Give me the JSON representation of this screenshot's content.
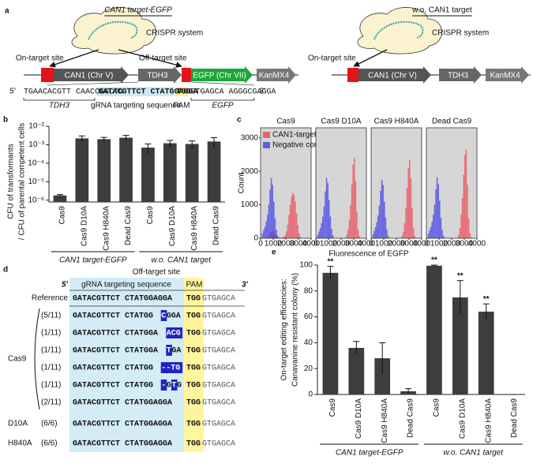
{
  "panel_labels": [
    "a",
    "b",
    "c",
    "d",
    "e"
  ],
  "panel_a": {
    "left": {
      "title": "CAN1 target-EGFP",
      "system": "CRISPR system",
      "on_target": "On-target site",
      "off_target": "Off-target site",
      "genes": [
        "CAN1 (Chr V)",
        "TDH3",
        "EGFP (Chr VII)",
        "KanMX4"
      ]
    },
    "sequence": {
      "five": "5'",
      "upstream": "TGAACACGTT CAACCGGCTG",
      "grna": "GATACGTTCT CTATGGAGGA",
      "pam": "TGG",
      "downstream": "GTGAGCA AGGGCGAGGA",
      "three": "3'"
    },
    "sequence_labels": [
      "TDH3",
      "gRNA targeting sequence",
      "PAM",
      "EGFP"
    ],
    "right": {
      "title": "w.o. CAN1 target",
      "system": "CRISPR system",
      "on_target": "On-target site",
      "genes": [
        "CAN1 (Chr V)",
        "TDH3",
        "KanMX4"
      ]
    }
  },
  "chart_data": [
    {
      "type": "bar",
      "log": true,
      "color": "#3d3d3d",
      "ylabel": [
        "CFU of transformants",
        "/ CFU of parental competent cells"
      ],
      "categories": [
        "Cas9",
        "Cas9 D10A",
        "Cas9 H840A",
        "Dead Cas9",
        "Cas9",
        "Cas9 D10A",
        "Cas9 H840A",
        "Dead Cas9"
      ],
      "values": [
        1.8e-06,
        0.0022,
        0.002,
        0.0024,
        0.0007,
        0.0012,
        0.0011,
        0.0015
      ],
      "errors": [
        2e-07,
        0.0008,
        0.0005,
        0.0008,
        0.0004,
        0.0005,
        0.0005,
        0.0009
      ],
      "ylim": [
        8e-07,
        0.01
      ],
      "yticks": [
        {
          "value": 1e-06,
          "label": "10⁻⁶"
        },
        {
          "value": 1e-05,
          "label": "10⁻⁵"
        },
        {
          "value": 0.0001,
          "label": "10⁻⁴"
        },
        {
          "value": 0.001,
          "label": "10⁻³"
        },
        {
          "value": 0.01,
          "label": "10⁻²"
        }
      ],
      "groups": [
        {
          "label": "CAN1 target-EGFP",
          "span": [
            0,
            3
          ]
        },
        {
          "label": "w.o. CAN1 target",
          "span": [
            4,
            7
          ]
        }
      ]
    },
    {
      "type": "histogram",
      "title": "Cas9",
      "ylabel": "Count",
      "xlabel": "Fluorescence of EGFP",
      "legend": "upper left",
      "background": "#d6d6d6",
      "bins": [
        0,
        100,
        200,
        300,
        400,
        500,
        600,
        700,
        800,
        900,
        1000,
        1100,
        1200,
        1300,
        1400,
        1500,
        1600,
        1700,
        1800,
        1900,
        2000,
        2100,
        2200,
        2300,
        2400,
        2500,
        2600,
        2700,
        2800,
        2900,
        3000,
        3100,
        3200,
        3300,
        3400,
        3500,
        3600,
        3700,
        3800,
        3900,
        4000
      ],
      "xlim": [
        0,
        4000
      ],
      "xticks": [
        0,
        1000,
        2000,
        3000,
        4000
      ],
      "ylim": [
        0,
        3300
      ],
      "yticks": [
        0,
        1000,
        2000,
        3000
      ],
      "series": [
        {
          "name": "CAN1-target EGFP",
          "color": "#e9505c",
          "values": [
            0,
            0,
            0,
            0,
            0,
            0,
            80,
            150,
            200,
            200,
            180,
            130,
            80,
            50,
            30,
            20,
            20,
            30,
            50,
            100,
            200,
            400,
            700,
            1000,
            1250,
            1350,
            1300,
            1100,
            750,
            400,
            150,
            50,
            0,
            0,
            0,
            0,
            0,
            0,
            0,
            0
          ]
        },
        {
          "name": "Negative control",
          "color": "#4646e6",
          "values": [
            0,
            150,
            250,
            350,
            500,
            700,
            1000,
            1450,
            1800,
            1600,
            1100,
            600,
            250,
            80,
            0,
            0,
            0,
            0,
            0,
            0,
            0,
            0,
            0,
            0,
            0,
            0,
            0,
            0,
            0,
            0,
            0,
            0,
            0,
            0,
            0,
            0,
            0,
            0,
            0,
            0
          ]
        }
      ]
    },
    {
      "type": "histogram",
      "title": "Cas9 D10A",
      "background": "#d6d6d6",
      "bins": [
        0,
        100,
        200,
        300,
        400,
        500,
        600,
        700,
        800,
        900,
        1000,
        1100,
        1200,
        1300,
        1400,
        1500,
        1600,
        1700,
        1800,
        1900,
        2000,
        2100,
        2200,
        2300,
        2400,
        2500,
        2600,
        2700,
        2800,
        2900,
        3000,
        3100,
        3200,
        3300,
        3400,
        3500,
        3600,
        3700,
        3800,
        3900,
        4000
      ],
      "xlim": [
        0,
        4000
      ],
      "xticks": [
        0,
        1000,
        2000,
        3000,
        4000
      ],
      "ylim": [
        0,
        3300
      ],
      "series": [
        {
          "color": "#e9505c",
          "values": [
            0,
            0,
            0,
            0,
            0,
            0,
            0,
            0,
            0,
            0,
            0,
            0,
            0,
            0,
            0,
            0,
            0,
            0,
            0,
            0,
            0,
            0,
            0,
            0,
            100,
            250,
            550,
            1000,
            1600,
            2200,
            2400,
            1700,
            800,
            250,
            60,
            0,
            0,
            0,
            0,
            0
          ]
        },
        {
          "color": "#4646e6",
          "values": [
            0,
            100,
            200,
            300,
            450,
            650,
            950,
            1400,
            1800,
            1650,
            1150,
            650,
            280,
            90,
            0,
            0,
            0,
            0,
            0,
            0,
            0,
            0,
            0,
            0,
            0,
            0,
            0,
            0,
            0,
            0,
            0,
            0,
            0,
            0,
            0,
            0,
            0,
            0,
            0,
            0
          ]
        }
      ]
    },
    {
      "type": "histogram",
      "title": "Cas9 H840A",
      "background": "#d6d6d6",
      "bins": [
        0,
        100,
        200,
        300,
        400,
        500,
        600,
        700,
        800,
        900,
        1000,
        1100,
        1200,
        1300,
        1400,
        1500,
        1600,
        1700,
        1800,
        1900,
        2000,
        2100,
        2200,
        2300,
        2400,
        2500,
        2600,
        2700,
        2800,
        2900,
        3000,
        3100,
        3200,
        3300,
        3400,
        3500,
        3600,
        3700,
        3800,
        3900,
        4000
      ],
      "xlim": [
        0,
        4000
      ],
      "xticks": [
        0,
        1000,
        2000,
        3000,
        4000
      ],
      "ylim": [
        0,
        3300
      ],
      "series": [
        {
          "color": "#e9505c",
          "values": [
            0,
            0,
            0,
            0,
            0,
            0,
            0,
            0,
            0,
            0,
            0,
            0,
            0,
            0,
            0,
            0,
            0,
            0,
            0,
            0,
            0,
            0,
            0,
            0,
            80,
            200,
            450,
            900,
            1500,
            2100,
            2350,
            1800,
            900,
            300,
            80,
            0,
            0,
            0,
            0,
            0
          ]
        },
        {
          "color": "#4646e6",
          "values": [
            0,
            120,
            220,
            330,
            480,
            680,
            980,
            1420,
            1750,
            1600,
            1100,
            620,
            260,
            80,
            0,
            0,
            0,
            0,
            0,
            0,
            0,
            0,
            0,
            0,
            0,
            0,
            0,
            0,
            0,
            0,
            0,
            0,
            0,
            0,
            0,
            0,
            0,
            0,
            0,
            0
          ]
        }
      ]
    },
    {
      "type": "histogram",
      "title": "Dead Cas9",
      "background": "#d6d6d6",
      "bins": [
        0,
        100,
        200,
        300,
        400,
        500,
        600,
        700,
        800,
        900,
        1000,
        1100,
        1200,
        1300,
        1400,
        1500,
        1600,
        1700,
        1800,
        1900,
        2000,
        2100,
        2200,
        2300,
        2400,
        2500,
        2600,
        2700,
        2800,
        2900,
        3000,
        3100,
        3200,
        3300,
        3400,
        3500,
        3600,
        3700,
        3800,
        3900,
        4000
      ],
      "xlim": [
        0,
        4000
      ],
      "xticks": [
        0,
        1000,
        2000,
        3000,
        4000
      ],
      "ylim": [
        0,
        3300
      ],
      "series": [
        {
          "color": "#e9505c",
          "values": [
            0,
            0,
            0,
            0,
            0,
            0,
            0,
            0,
            0,
            0,
            0,
            0,
            0,
            0,
            0,
            0,
            0,
            0,
            0,
            0,
            0,
            0,
            0,
            0,
            0,
            100,
            300,
            700,
            1200,
            1900,
            2500,
            2650,
            1600,
            600,
            150,
            30,
            0,
            0,
            0,
            0
          ]
        },
        {
          "color": "#4646e6",
          "values": [
            0,
            130,
            240,
            340,
            490,
            700,
            1000,
            1460,
            1820,
            1620,
            1120,
            610,
            250,
            80,
            0,
            0,
            0,
            0,
            0,
            0,
            0,
            0,
            0,
            0,
            0,
            0,
            0,
            0,
            0,
            0,
            0,
            0,
            0,
            0,
            0,
            0,
            0,
            0,
            0,
            0
          ]
        }
      ]
    },
    {
      "type": "bar",
      "color": "#3d3d3d",
      "ylabel": [
        "On-target editing efficiencies:",
        "Canavanine resistant colony (%)"
      ],
      "categories": [
        "Cas9",
        "Cas9 D10A",
        "Cas9 H840A",
        "Dead Cas9",
        "Cas9",
        "Cas9 D10A",
        "Cas9 H840A",
        "Dead Cas9"
      ],
      "values": [
        94,
        36,
        28,
        2.5,
        99.5,
        75,
        64,
        0
      ],
      "errors": [
        5,
        5,
        12,
        2,
        0.5,
        13,
        6,
        0
      ],
      "ylim": [
        0,
        100
      ],
      "yticks": [
        0,
        20,
        40,
        60,
        80,
        100
      ],
      "annotations": [
        {
          "text": "**",
          "at": 0
        },
        {
          "text": "**",
          "at": 4
        },
        {
          "text": "**",
          "at": 5
        },
        {
          "text": "**",
          "at": 6
        }
      ],
      "groups": [
        {
          "label": "CAN1 target-EGFP",
          "span": [
            0,
            3
          ]
        },
        {
          "label": "w.o. CAN1 target",
          "span": [
            4,
            7
          ]
        }
      ]
    }
  ],
  "panel_d": {
    "title": "Off-target site",
    "header": {
      "five": "5'",
      "grna": "gRNA targeting sequence",
      "pam": "PAM",
      "three": "3'"
    },
    "group_label": "Cas9",
    "rows": [
      {
        "label": "Reference",
        "segments": [
          {
            "text": "GATACGTTCT CTATGGAGGA"
          }
        ],
        "pam": "TGG",
        "tail": "GTGAGCA"
      },
      {
        "count": "(5/11)",
        "segments": [
          {
            "text": "GATACGTTCT CTATGG"
          },
          {
            "text": "C",
            "mismatch": true
          },
          {
            "text": "GGA"
          }
        ],
        "pam": "TGG",
        "tail": "GTGAGCA"
      },
      {
        "count": "(1/11)",
        "segments": [
          {
            "text": "GATACGTTCT CTATGGA"
          },
          {
            "text": "ACG",
            "mismatch": true
          }
        ],
        "pam": "TGG",
        "tail": "GTGAGCA"
      },
      {
        "count": "(1/11)",
        "segments": [
          {
            "text": "GATACGTTCT CTATGGA"
          },
          {
            "text": "T",
            "mismatch": true
          },
          {
            "text": "GA"
          }
        ],
        "pam": "TGG",
        "tail": "GTGAGCA"
      },
      {
        "count": "(1/11)",
        "segments": [
          {
            "text": "GATACGTTCT CTATGG"
          },
          {
            "text": "--TG",
            "mismatch": true
          }
        ],
        "pam": "TGG",
        "tail": "GTGAGCA"
      },
      {
        "count": "(1/11)",
        "segments": [
          {
            "text": "GATACGTTCT CTATGG"
          },
          {
            "text": "-",
            "mismatch": true
          },
          {
            "text": "G"
          },
          {
            "text": "T",
            "mismatch": true
          },
          {
            "text": "G"
          }
        ],
        "pam": "TGG",
        "tail": "GTGAGCA"
      },
      {
        "count": "(2/11)",
        "segments": [
          {
            "text": "GATACGTTCT CTATGGAGGA"
          }
        ],
        "pam": "TGG",
        "tail": "GTGAGCA"
      },
      {
        "label": "D10A",
        "count": "(6/6)",
        "segments": [
          {
            "text": "GATACGTTCT CTATGGAGGA"
          }
        ],
        "pam": "TGG",
        "tail": "GTGAGCA"
      },
      {
        "label": "H840A",
        "count": "(6/6)",
        "segments": [
          {
            "text": "GATACGTTCT CTATGGAGGA"
          }
        ],
        "pam": "TGG",
        "tail": "GTGAGCA"
      }
    ]
  }
}
